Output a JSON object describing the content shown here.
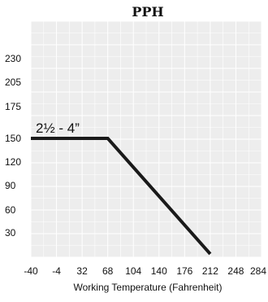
{
  "chart_data": {
    "type": "line",
    "title": "PPH",
    "xlabel": "Working Temperature (Fahrenheit)",
    "ylabel": "",
    "x_ticks": [
      "-40",
      "-4",
      "32",
      "68",
      "104",
      "140",
      "176",
      "212",
      "248",
      "284"
    ],
    "y_ticks": [
      "30",
      "60",
      "90",
      "120",
      "150",
      "175",
      "205",
      "230"
    ],
    "xlim": [
      -40,
      284
    ],
    "grid": true,
    "series": [
      {
        "name": "",
        "x": [
          -40,
          68,
          212
        ],
        "y": [
          150,
          150,
          0
        ]
      }
    ],
    "annotations": [
      {
        "text": "2½ - 4”",
        "x": -40,
        "y": 150
      }
    ],
    "colors": {
      "plot_background": "#ededed",
      "grid": "#ffffff",
      "line": "#1a1a1a",
      "text": "#111111"
    }
  }
}
